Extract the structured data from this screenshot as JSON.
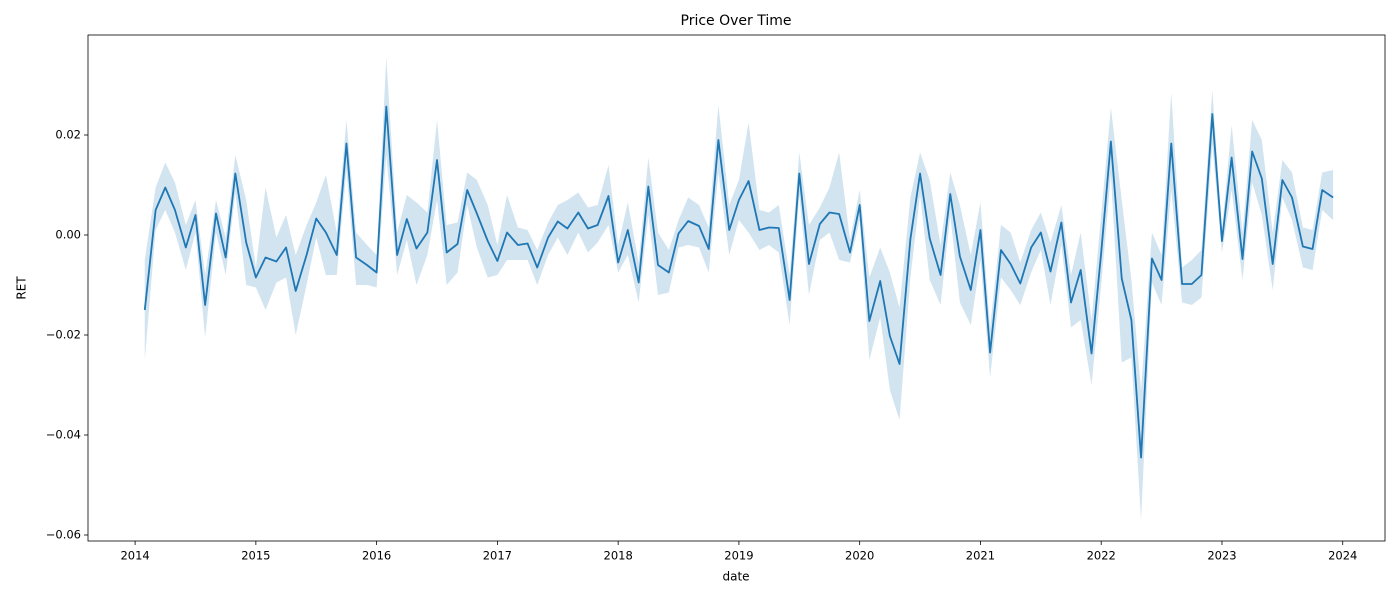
{
  "chart_data": {
    "type": "line",
    "title": "Price Over Time",
    "xlabel": "date",
    "ylabel": "RET",
    "color": "#1f77b4",
    "x": [
      2014.08,
      2014.17,
      2014.25,
      2014.33,
      2014.42,
      2014.5,
      2014.58,
      2014.67,
      2014.75,
      2014.83,
      2014.92,
      2015.0,
      2015.08,
      2015.17,
      2015.25,
      2015.33,
      2015.42,
      2015.5,
      2015.58,
      2015.67,
      2015.75,
      2015.83,
      2015.92,
      2016.0,
      2016.08,
      2016.17,
      2016.25,
      2016.33,
      2016.42,
      2016.5,
      2016.58,
      2016.67,
      2016.75,
      2016.83,
      2016.92,
      2017.0,
      2017.08,
      2017.17,
      2017.25,
      2017.33,
      2017.42,
      2017.5,
      2017.58,
      2017.67,
      2017.75,
      2017.83,
      2017.92,
      2018.0,
      2018.08,
      2018.17,
      2018.25,
      2018.33,
      2018.42,
      2018.5,
      2018.58,
      2018.67,
      2018.75,
      2018.83,
      2018.92,
      2019.0,
      2019.08,
      2019.17,
      2019.25,
      2019.33,
      2019.42,
      2019.5,
      2019.58,
      2019.67,
      2019.75,
      2019.83,
      2019.92,
      2020.0,
      2020.08,
      2020.17,
      2020.25,
      2020.33,
      2020.42,
      2020.5,
      2020.58,
      2020.67,
      2020.75,
      2020.83,
      2020.92,
      2021.0,
      2021.08,
      2021.17,
      2021.25,
      2021.33,
      2021.42,
      2021.5,
      2021.58,
      2021.67,
      2021.75,
      2021.83,
      2021.92,
      2022.0,
      2022.08,
      2022.17,
      2022.25,
      2022.33,
      2022.42,
      2022.5,
      2022.58,
      2022.67,
      2022.75,
      2022.83,
      2022.92,
      2023.0,
      2023.08,
      2023.17,
      2023.25,
      2023.33,
      2023.42,
      2023.5,
      2023.58,
      2023.67,
      2023.75,
      2023.83,
      2023.92
    ],
    "values": [
      -0.015,
      0.005,
      0.0095,
      0.005,
      -0.0025,
      0.004,
      -0.014,
      0.0043,
      -0.0045,
      0.0123,
      -0.0015,
      -0.0085,
      -0.0045,
      -0.0053,
      -0.0025,
      -0.0112,
      -0.004,
      0.0033,
      0.0005,
      -0.004,
      0.0183,
      -0.0045,
      -0.006,
      -0.0075,
      0.0257,
      -0.004,
      0.0032,
      -0.0027,
      0.0005,
      0.015,
      -0.0035,
      -0.0018,
      0.009,
      0.0043,
      -0.0012,
      -0.0052,
      0.0005,
      -0.002,
      -0.0017,
      -0.0065,
      -0.0005,
      0.0027,
      0.0013,
      0.0045,
      0.0013,
      0.002,
      0.0078,
      -0.0055,
      0.001,
      -0.0095,
      0.0097,
      -0.006,
      -0.0075,
      0.0003,
      0.0028,
      0.0018,
      -0.0028,
      0.019,
      0.001,
      0.007,
      0.0108,
      0.001,
      0.0015,
      0.0014,
      -0.013,
      0.0123,
      -0.0058,
      0.0022,
      0.0045,
      0.0042,
      -0.0035,
      0.006,
      -0.0172,
      -0.0092,
      -0.0202,
      -0.0258,
      -0.0008,
      0.0123,
      -0.0007,
      -0.008,
      0.0082,
      -0.0043,
      -0.011,
      0.001,
      -0.0235,
      -0.003,
      -0.0058,
      -0.0097,
      -0.0025,
      0.0005,
      -0.0073,
      0.0025,
      -0.0135,
      -0.007,
      -0.0237,
      -0.0035,
      0.0187,
      -0.0087,
      -0.017,
      -0.0445,
      -0.0047,
      -0.009,
      0.0183,
      -0.0098,
      -0.0098,
      -0.008,
      0.0242,
      -0.0012,
      0.0155,
      -0.0048,
      0.0167,
      0.0113,
      -0.0058,
      0.011,
      0.0075,
      -0.0023,
      -0.0028,
      0.009,
      0.0075
    ],
    "lower": [
      -0.025,
      0.001,
      0.005,
      0.0005,
      -0.007,
      0.0005,
      -0.0205,
      0.0005,
      -0.008,
      0.0085,
      -0.01,
      -0.0105,
      -0.015,
      -0.0095,
      -0.0085,
      -0.02,
      -0.01,
      -0.0005,
      -0.008,
      -0.008,
      0.013,
      -0.01,
      -0.01,
      -0.0105,
      0.016,
      -0.008,
      -0.001,
      -0.01,
      -0.004,
      0.007,
      -0.01,
      -0.0075,
      0.006,
      -0.0025,
      -0.0085,
      -0.008,
      -0.005,
      -0.005,
      -0.005,
      -0.01,
      -0.004,
      -0.0005,
      -0.004,
      0.0005,
      -0.0035,
      -0.0015,
      0.002,
      -0.0075,
      -0.004,
      -0.0135,
      0.004,
      -0.012,
      -0.0115,
      -0.0025,
      -0.002,
      -0.0025,
      -0.0075,
      0.0125,
      -0.004,
      0.003,
      0.0005,
      -0.003,
      -0.002,
      -0.0035,
      -0.018,
      0.008,
      -0.012,
      -0.001,
      0.0005,
      -0.005,
      -0.0055,
      0.003,
      -0.025,
      -0.0165,
      -0.031,
      -0.037,
      -0.0085,
      0.008,
      -0.009,
      -0.014,
      0.004,
      -0.0135,
      -0.018,
      -0.005,
      -0.0285,
      -0.0085,
      -0.011,
      -0.014,
      -0.0075,
      -0.003,
      -0.014,
      -0.002,
      -0.0185,
      -0.017,
      -0.03,
      -0.01,
      0.012,
      -0.0255,
      -0.0245,
      -0.057,
      -0.0095,
      -0.014,
      0.009,
      -0.0135,
      -0.014,
      -0.0125,
      0.018,
      -0.0035,
      0.009,
      -0.009,
      0.0105,
      0.004,
      -0.011,
      0.0075,
      0.003,
      -0.0065,
      -0.007,
      0.005,
      0.003
    ],
    "upper": [
      -0.005,
      0.0095,
      0.0145,
      0.0105,
      0.002,
      0.007,
      -0.008,
      0.007,
      -0.0005,
      0.016,
      0.007,
      -0.0065,
      0.0095,
      -0.0005,
      0.004,
      -0.004,
      0.002,
      0.0065,
      0.012,
      0.0005,
      0.023,
      0.0005,
      -0.002,
      -0.004,
      0.0355,
      0.0005,
      0.008,
      0.0065,
      0.0045,
      0.023,
      0.002,
      0.0025,
      0.0125,
      0.011,
      0.006,
      -0.002,
      0.008,
      0.0015,
      0.001,
      -0.003,
      0.0025,
      0.006,
      0.007,
      0.0085,
      0.0055,
      0.006,
      0.014,
      -0.002,
      0.0065,
      -0.0055,
      0.0155,
      0.0005,
      -0.003,
      0.003,
      0.0075,
      0.006,
      0.0015,
      0.026,
      0.006,
      0.011,
      0.0225,
      0.005,
      0.0045,
      0.006,
      -0.008,
      0.0165,
      0.002,
      0.0055,
      0.0095,
      0.0165,
      -0.001,
      0.009,
      -0.0085,
      -0.0025,
      -0.0075,
      -0.0145,
      0.0075,
      0.0165,
      0.011,
      -0.002,
      0.0125,
      0.006,
      -0.004,
      0.0065,
      -0.0185,
      0.002,
      0.0005,
      -0.0055,
      0.001,
      0.0045,
      -0.0015,
      0.006,
      -0.008,
      0.0005,
      -0.017,
      0.004,
      0.0255,
      0.007,
      -0.009,
      -0.031,
      0.0005,
      -0.004,
      0.0285,
      -0.0065,
      -0.005,
      -0.003,
      0.029,
      0.001,
      0.022,
      0.0005,
      0.023,
      0.019,
      0.0005,
      0.015,
      0.0125,
      0.0015,
      0.001,
      0.0125,
      0.013
    ],
    "xlim": [
      2013.61,
      2024.35
    ],
    "xticks": [
      2014,
      2015,
      2016,
      2017,
      2018,
      2019,
      2020,
      2021,
      2022,
      2023,
      2024
    ],
    "ylim": [
      -0.0612,
      0.04
    ],
    "yticks": [
      {
        "value": -0.06,
        "label": "−0.06"
      },
      {
        "value": -0.04,
        "label": "−0.04"
      },
      {
        "value": -0.02,
        "label": "−0.02"
      },
      {
        "value": 0,
        "label": "0.00"
      },
      {
        "value": 0.02,
        "label": "0.02"
      }
    ],
    "grid": false
  }
}
